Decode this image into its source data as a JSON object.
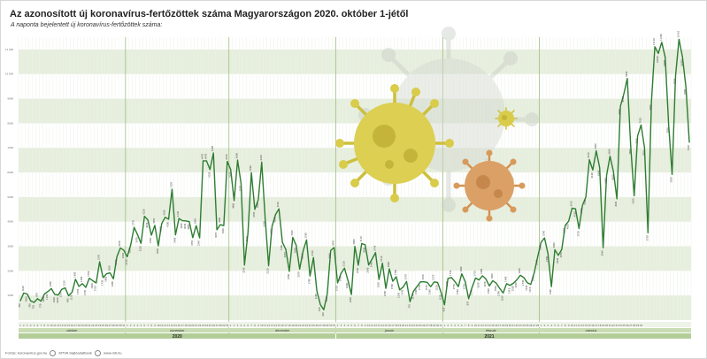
{
  "title": "Az azonosított új koronavírus-fertőzöttek száma Magyarországon 2020. október 1-jétől",
  "subtitle": "A naponta bejelentett új koronavírus-fertőzöttek száma:",
  "footer": {
    "source": "Forrás: koronavirus.gov.hu",
    "credit": "MTVA Sajtóadatbank",
    "url": "www.mti.hu"
  },
  "colors": {
    "line": "#2e7d32",
    "band": "#e6eedd",
    "label_bar": "#c9dcb4",
    "month_bar": "#b3cd98",
    "virus_yellow": "#d9cc4a",
    "virus_orange": "#d89a5a"
  },
  "icons": [
    "virus-yellow-icon",
    "virus-orange-icon",
    "virus-small-icon",
    "virus-grey-icon"
  ],
  "chart_data": {
    "type": "line",
    "title": "Az azonosított új koronavírus-fertőzöttek száma Magyarországon 2020. október 1-jétől",
    "grid": true,
    "months": [
      {
        "label": "október",
        "days": 31,
        "year": "2020"
      },
      {
        "label": "november",
        "days": 30,
        "year": "2020"
      },
      {
        "label": "december",
        "days": 31,
        "year": "2020"
      },
      {
        "label": "január",
        "days": 31,
        "year": "2021"
      },
      {
        "label": "február",
        "days": 28,
        "year": "2021"
      },
      {
        "label": "március",
        "days": 30,
        "year": "2021"
      }
    ],
    "years": [
      "2020",
      "2021"
    ],
    "ylim": [
      0,
      11500
    ],
    "series": [
      {
        "values": [
          780,
          1100,
          1060,
          780,
          720,
          870,
          770,
          1060,
          1160,
          1280,
          1040,
          1020,
          1250,
          1310,
          990,
          1130,
          1660,
          1370,
          1480,
          1330,
          1700,
          1600,
          1510,
          2370,
          1730,
          1880,
          1920,
          1680,
          2570,
          2930,
          2840,
          2570,
          3050,
          3770,
          3470,
          3120,
          4220,
          4070,
          3450,
          3850,
          3020,
          3920,
          4180,
          4100,
          5320,
          3460,
          4130,
          4040,
          4030,
          4000,
          3350,
          3840,
          3340,
          6470,
          6470,
          6120,
          6790,
          3670,
          3880,
          3840,
          6450,
          6120,
          4860,
          6500,
          5570,
          2240,
          3520,
          5990,
          4500,
          4890,
          6420,
          4130,
          2210,
          3810,
          4290,
          4520,
          3160,
          2870,
          1980,
          3360,
          3040,
          2070,
          2810,
          3260,
          1790,
          2540,
          1180,
          630,
          420,
          1060,
          2830,
          2950,
          1510,
          1900,
          2110,
          1620,
          1040,
          3000,
          2230,
          3110,
          3060,
          2240,
          2480,
          2740,
          1650,
          2310,
          1290,
          2080,
          1580,
          1760,
          1230,
          1340,
          1570,
          750,
          1170,
          1360,
          1550,
          1560,
          1530,
          1360,
          1550,
          1530,
          1130,
          620,
          1690,
          1730,
          1570,
          1360,
          1880,
          1570,
          870,
          1330,
          1710,
          1630,
          1800,
          1670,
          1390,
          1600,
          1500,
          1290,
          1100,
          1480,
          1410,
          1500,
          1640,
          1820,
          1730,
          1520,
          1450,
          1910,
          2560,
          3160,
          3340,
          2700,
          1360,
          2860,
          2630,
          2870,
          3850,
          4020,
          4550,
          4520,
          3720,
          4660,
          5010,
          6520,
          6100,
          6880,
          6190,
          2940,
          5880,
          6660,
          6020,
          4930,
          8680,
          9190,
          9820,
          7060,
          5050,
          7490,
          7930,
          7010,
          3550,
          8860,
          11110,
          10840,
          11290,
          10680,
          7930,
          5920,
          9920,
          11410,
          10700,
          9490,
          7220
        ]
      }
    ],
    "point_labels": [
      "780",
      "1100",
      "1060",
      "780",
      "720",
      "870",
      "770",
      "1060",
      "1160",
      "1280",
      "1040",
      "1020",
      "1250",
      "1310",
      "990",
      "1130",
      "1660",
      "1370",
      "1480",
      "1330",
      "1700",
      "1600",
      "1510",
      "2370",
      "1730",
      "1880",
      "1920",
      "1680",
      "2570",
      "2930",
      "2840",
      "2570",
      "3050",
      "3770",
      "3470",
      "3120",
      "4220",
      "4070",
      "3450",
      "3850",
      "3020",
      "3920",
      "4180",
      "4100",
      "5320",
      "3460",
      "4130",
      "4040",
      "4030",
      "4000",
      "3350",
      "3840",
      "3340",
      "6470",
      "6470",
      "6120",
      "6790",
      "3670",
      "3880",
      "3840",
      "6450",
      "6120",
      "4860",
      "6500",
      "5570",
      "2240",
      "3520",
      "5990",
      "4500",
      "4890",
      "6420",
      "4130",
      "2210",
      "3810",
      "4290",
      "4520",
      "3160",
      "2870",
      "1980",
      "3360",
      "3040",
      "2070",
      "2810",
      "3260",
      "1790",
      "2540",
      "1180",
      "630",
      "420",
      "1060",
      "2830",
      "2950",
      "1510",
      "1900",
      "2110",
      "1620",
      "1040",
      "3000",
      "2230",
      "3110",
      "3060",
      "2240",
      "2480",
      "2740",
      "1650",
      "2310",
      "1290",
      "2080",
      "1580",
      "1760",
      "1230",
      "1340",
      "1570",
      "750",
      "1170",
      "1360",
      "1550",
      "1560",
      "1530",
      "1360",
      "1550",
      "1530",
      "1130",
      "620",
      "1690",
      "1730",
      "1570",
      "1360",
      "1880",
      "1570",
      "870",
      "1330",
      "1710",
      "1630",
      "1800",
      "1670",
      "1390",
      "1600",
      "1500",
      "1290",
      "1100",
      "1480",
      "1410",
      "1500",
      "1640",
      "1820",
      "1730",
      "1520",
      "1450",
      "1910",
      "2560",
      "3160",
      "3340",
      "2700",
      "1360",
      "2860",
      "2630",
      "2870",
      "3850",
      "4020",
      "4550",
      "4520",
      "3720",
      "4660",
      "5010",
      "6520",
      "6100",
      "6880",
      "6190",
      "2940",
      "5880",
      "6660",
      "6020",
      "4930",
      "8680",
      "9190",
      "9820",
      "7060",
      "5050",
      "7490",
      "7930",
      "7010",
      "3550",
      "8860",
      "11110",
      "10840",
      "11290",
      "10680",
      "7930",
      "5920",
      "9920",
      "11410",
      "10700",
      "9490",
      "7220"
    ]
  }
}
